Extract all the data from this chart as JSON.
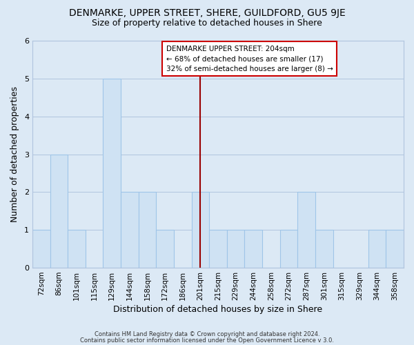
{
  "title": "DENMARKE, UPPER STREET, SHERE, GUILDFORD, GU5 9JE",
  "subtitle": "Size of property relative to detached houses in Shere",
  "xlabel": "Distribution of detached houses by size in Shere",
  "ylabel": "Number of detached properties",
  "bins": [
    "72sqm",
    "86sqm",
    "101sqm",
    "115sqm",
    "129sqm",
    "144sqm",
    "158sqm",
    "172sqm",
    "186sqm",
    "201sqm",
    "215sqm",
    "229sqm",
    "244sqm",
    "258sqm",
    "272sqm",
    "287sqm",
    "301sqm",
    "315sqm",
    "329sqm",
    "344sqm",
    "358sqm"
  ],
  "heights": [
    1,
    3,
    1,
    0,
    5,
    2,
    2,
    1,
    0,
    2,
    1,
    1,
    1,
    0,
    1,
    2,
    1,
    0,
    0,
    1,
    1
  ],
  "bar_color": "#cfe2f3",
  "bar_edge_color": "#9fc5e8",
  "vline_x_idx": 9,
  "vline_color": "#990000",
  "ylim": [
    0,
    6
  ],
  "yticks": [
    0,
    1,
    2,
    3,
    4,
    5,
    6
  ],
  "grid_color": "#b0c4de",
  "bg_color": "#dce9f5",
  "legend_title": "DENMARKE UPPER STREET: 204sqm",
  "legend_line1": "← 68% of detached houses are smaller (17)",
  "legend_line2": "32% of semi-detached houses are larger (8) →",
  "legend_box_color": "#ffffff",
  "legend_box_edge": "#cc0000",
  "title_fontsize": 10,
  "subtitle_fontsize": 9,
  "footer1": "Contains HM Land Registry data © Crown copyright and database right 2024.",
  "footer2": "Contains public sector information licensed under the Open Government Licence v 3.0."
}
